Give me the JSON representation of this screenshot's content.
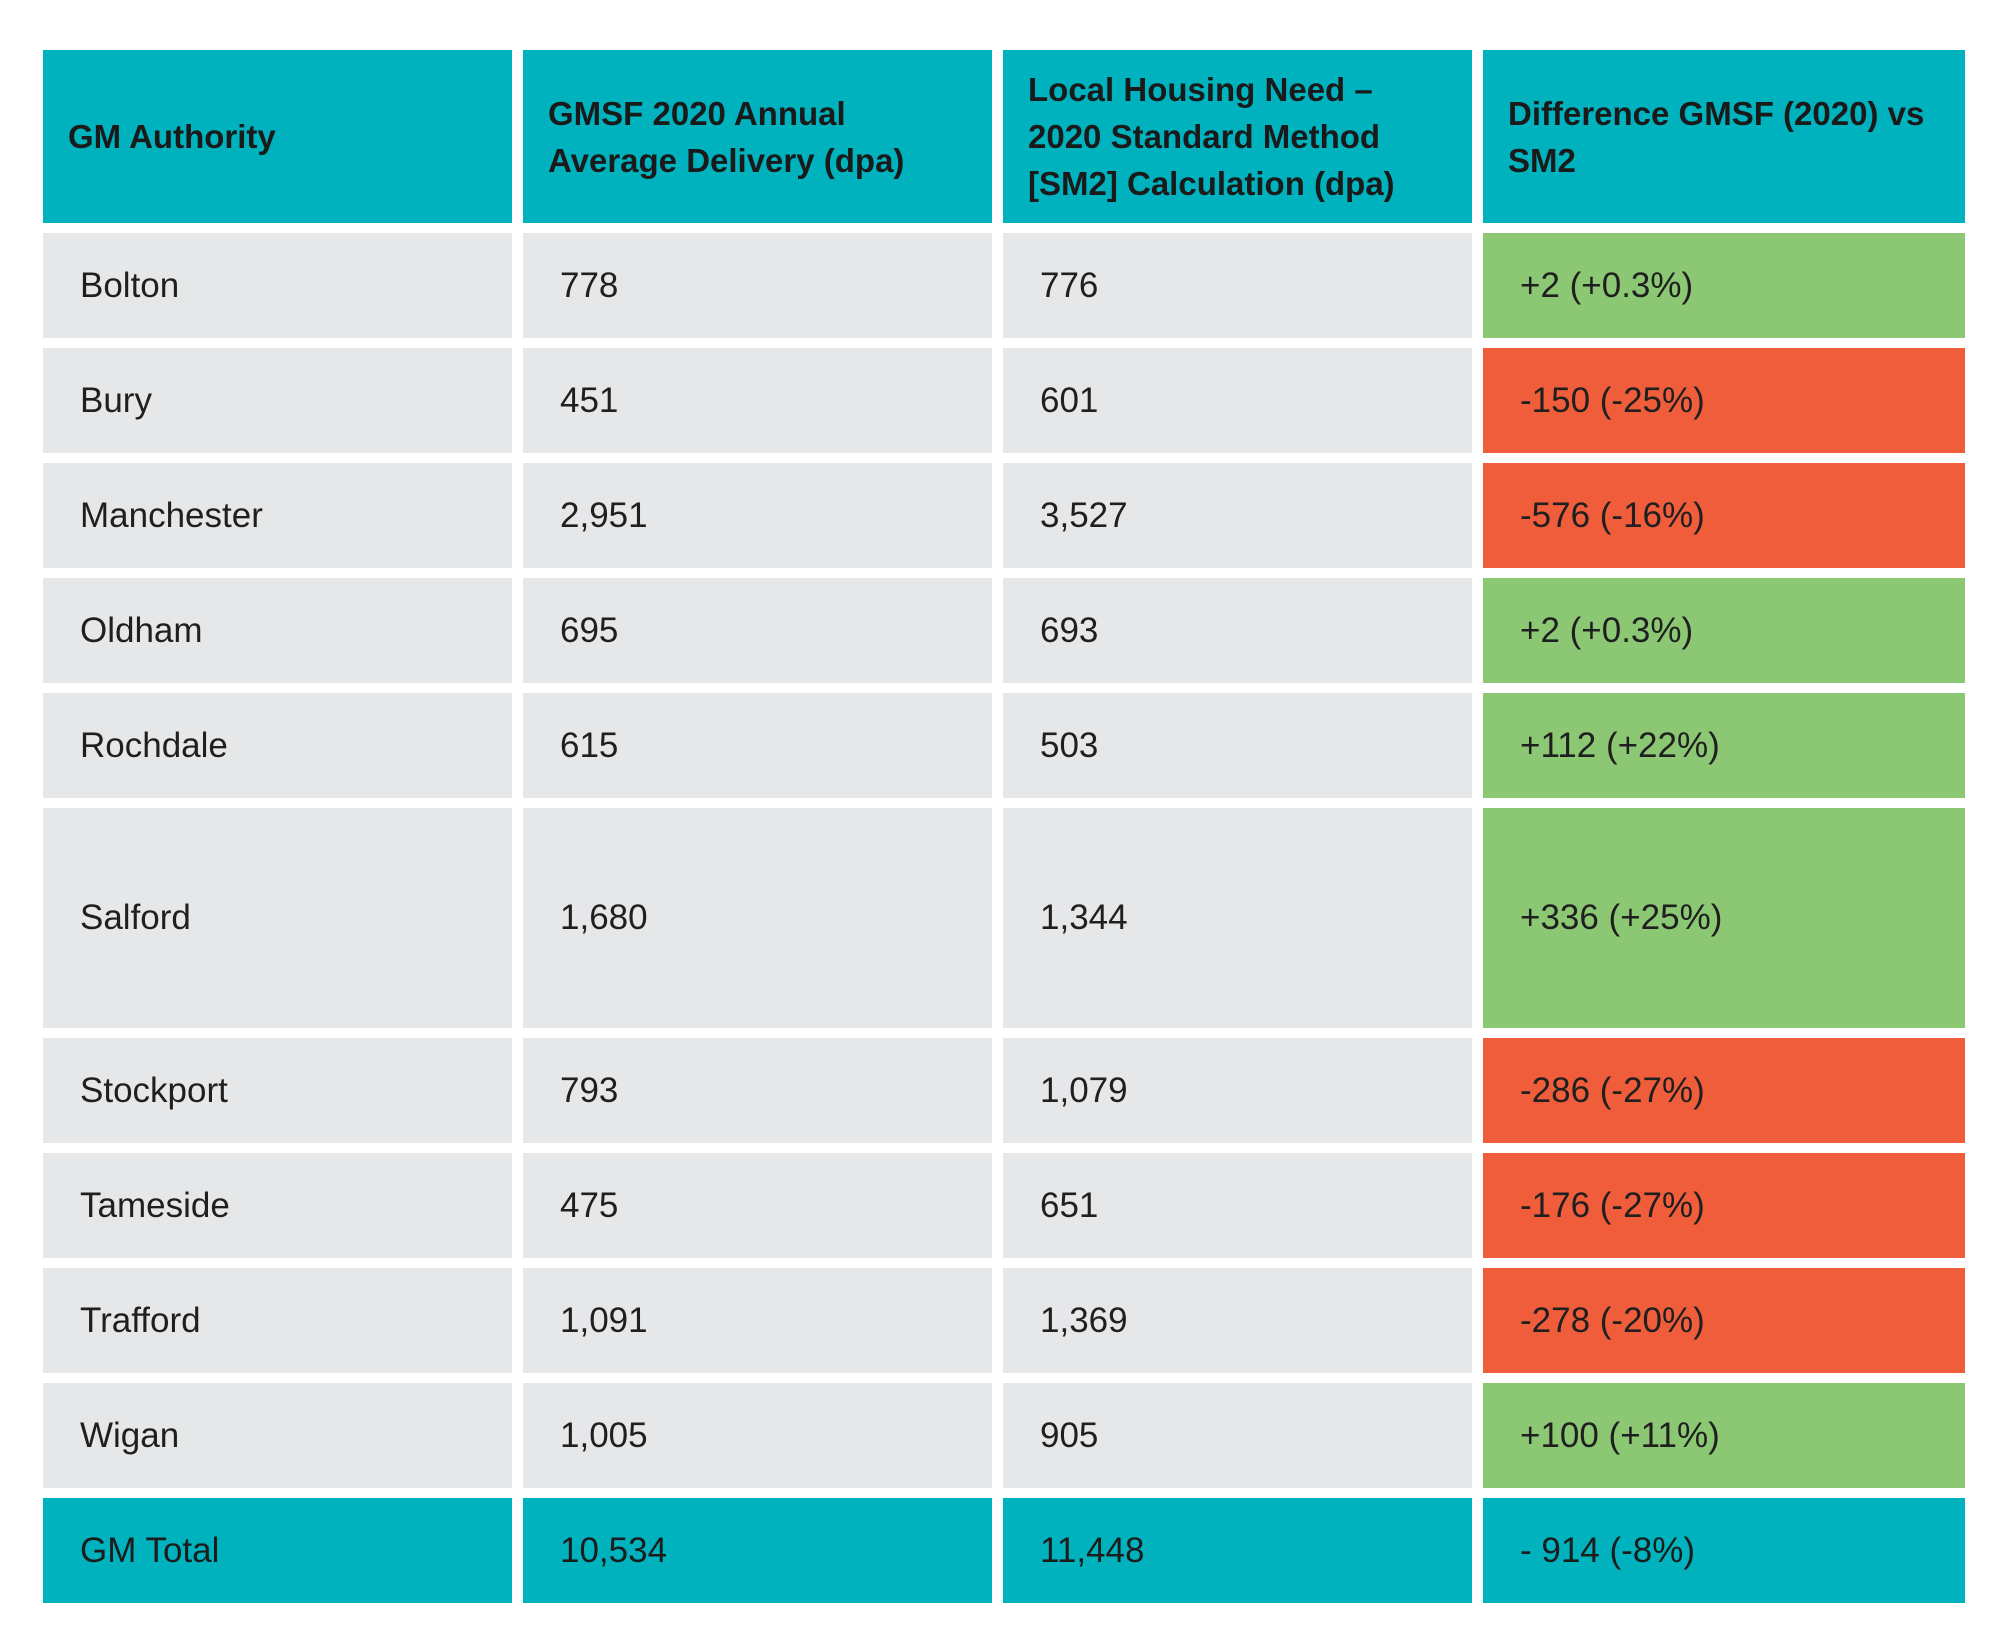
{
  "table": {
    "headers": [
      "GM Authority",
      "GMSF 2020 Annual Average Delivery (dpa)",
      "Local Housing Need – 2020 Standard Method [SM2] Calculation (dpa)",
      "Difference GMSF (2020) vs SM2"
    ],
    "rows": [
      [
        "Bolton",
        "778",
        "776",
        "+2 (+0.3%)"
      ],
      [
        "Bury",
        "451",
        "601",
        "-150 (-25%)"
      ],
      [
        "Manchester",
        "2,951",
        "3,527",
        "-576 (-16%)"
      ],
      [
        "Oldham",
        "695",
        "693",
        "+2 (+0.3%)"
      ],
      [
        "Rochdale",
        "615",
        "503",
        "+112 (+22%)"
      ],
      [
        "Salford",
        "1,680",
        "1,344",
        "+336 (+25%)"
      ],
      [
        "Stockport",
        "793",
        "1,079",
        "-286 (-27%)"
      ],
      [
        "Tameside",
        "475",
        "651",
        "-176 (-27%)"
      ],
      [
        "Trafford",
        "1,091",
        "1,369",
        "-278 (-20%)"
      ],
      [
        "Wigan",
        "1,005",
        "905",
        "+100 (+11%)"
      ]
    ],
    "total": [
      "GM Total",
      "10,534",
      "11,448",
      "- 914 (-8%)"
    ]
  },
  "colors": {
    "header_total": "#00b2bd",
    "cell": "#e6e7e9",
    "positive": "#8cc874",
    "negative": "#f05d3b"
  },
  "chart_data": {
    "type": "table",
    "columns": [
      "GM Authority",
      "GMSF 2020 Annual Average Delivery (dpa)",
      "Local Housing Need – 2020 Standard Method [SM2] Calculation (dpa)",
      "Difference GMSF (2020) vs SM2"
    ],
    "rows": [
      {
        "authority": "Bolton",
        "gmsf_2020": 778,
        "sm2": 776,
        "difference": 2,
        "difference_pct": 0.3
      },
      {
        "authority": "Bury",
        "gmsf_2020": 451,
        "sm2": 601,
        "difference": -150,
        "difference_pct": -25
      },
      {
        "authority": "Manchester",
        "gmsf_2020": 2951,
        "sm2": 3527,
        "difference": -576,
        "difference_pct": -16
      },
      {
        "authority": "Oldham",
        "gmsf_2020": 695,
        "sm2": 693,
        "difference": 2,
        "difference_pct": 0.3
      },
      {
        "authority": "Rochdale",
        "gmsf_2020": 615,
        "sm2": 503,
        "difference": 112,
        "difference_pct": 22
      },
      {
        "authority": "Salford",
        "gmsf_2020": 1680,
        "sm2": 1344,
        "difference": 336,
        "difference_pct": 25
      },
      {
        "authority": "Stockport",
        "gmsf_2020": 793,
        "sm2": 1079,
        "difference": -286,
        "difference_pct": -27
      },
      {
        "authority": "Tameside",
        "gmsf_2020": 475,
        "sm2": 651,
        "difference": -176,
        "difference_pct": -27
      },
      {
        "authority": "Trafford",
        "gmsf_2020": 1091,
        "sm2": 1369,
        "difference": -278,
        "difference_pct": -20
      },
      {
        "authority": "Wigan",
        "gmsf_2020": 1005,
        "sm2": 905,
        "difference": 100,
        "difference_pct": 11
      }
    ],
    "total": {
      "authority": "GM Total",
      "gmsf_2020": 10534,
      "sm2": 11448,
      "difference": -914,
      "difference_pct": -8
    }
  }
}
